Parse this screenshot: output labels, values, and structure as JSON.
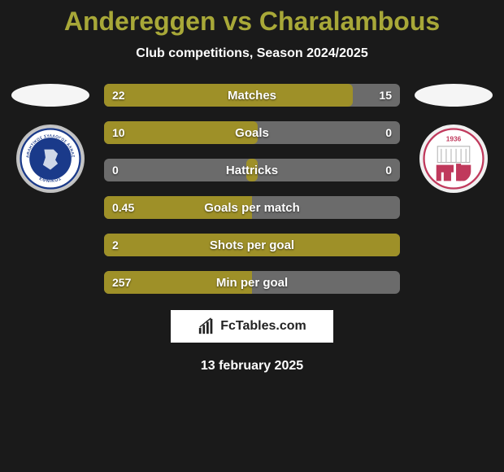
{
  "title": "Andereggen vs Charalambous",
  "subtitle": "Club competitions, Season 2024/2025",
  "date": "13 february 2025",
  "branding_text": "FcTables.com",
  "colors": {
    "background": "#1a1a1a",
    "title": "#a8a838",
    "text": "#ffffff",
    "bar_left": "#9e9028",
    "bar_right": "#9e9028",
    "bar_empty": "#6b6b6b",
    "branding_bg": "#ffffff"
  },
  "stats": [
    {
      "label": "Matches",
      "left_val": "22",
      "right_val": "15",
      "left_pct": 100,
      "right_pct": 68
    },
    {
      "label": "Goals",
      "left_val": "10",
      "right_val": "0",
      "left_pct": 100,
      "right_pct": 4
    },
    {
      "label": "Hattricks",
      "left_val": "0",
      "right_val": "0",
      "left_pct": 4,
      "right_pct": 4
    },
    {
      "label": "Goals per match",
      "left_val": "0.45",
      "right_val": "",
      "left_pct": 100,
      "right_pct": 0
    },
    {
      "label": "Shots per goal",
      "left_val": "2",
      "right_val": "",
      "left_pct": 100,
      "right_pct": 100
    },
    {
      "label": "Min per goal",
      "left_val": "257",
      "right_val": "",
      "left_pct": 100,
      "right_pct": 0
    }
  ],
  "left_club": {
    "name": "Ethnikos Achna",
    "ring_text": "ΑΘΛΗΤΙΚΟΣ ΣΥΛΛΟΓΟΣ ΑΧΝΑΣ ΕΘΝΙΚΟΣ"
  },
  "right_club": {
    "name": "ENP",
    "year": "1936"
  }
}
